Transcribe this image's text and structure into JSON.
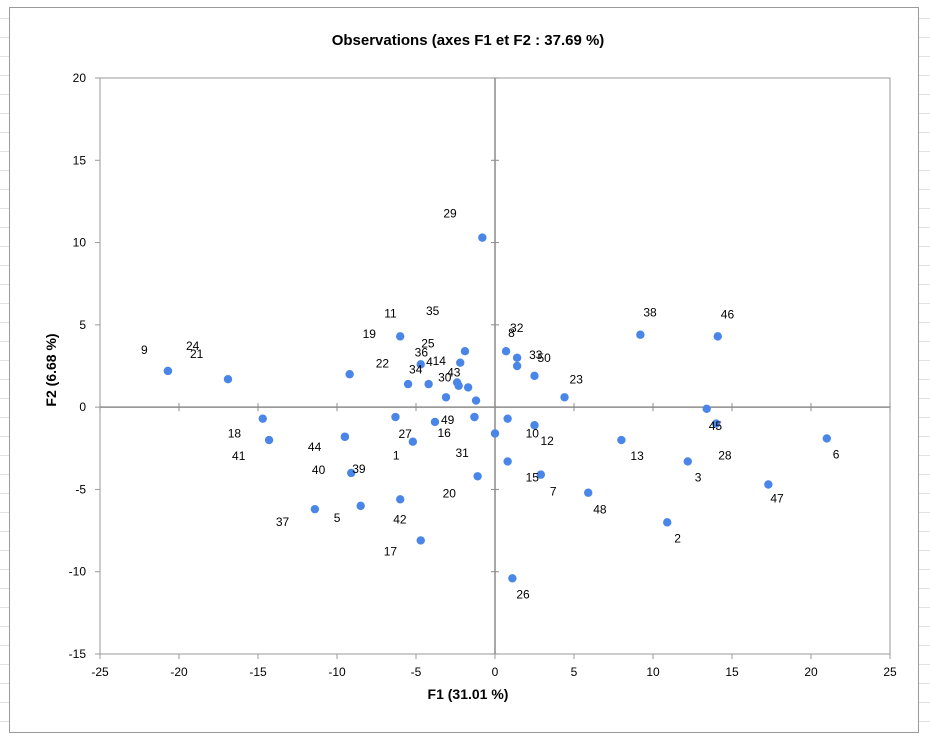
{
  "chart_data": {
    "type": "scatter",
    "title": "Observations (axes F1 et F2 : 37.69 %)",
    "xlabel": "F1 (31.01 %)",
    "ylabel": "F2 (6.68 %)",
    "xlim": [
      -25,
      25
    ],
    "ylim": [
      -15,
      20
    ],
    "xticks": [
      "-25",
      "-20",
      "-15",
      "-10",
      "-5",
      "0",
      "5",
      "10",
      "15",
      "20",
      "25"
    ],
    "yticks": [
      "-15",
      "-10",
      "-5",
      "0",
      "5",
      "10",
      "15",
      "20"
    ],
    "point_color": "#4a86e8",
    "grid": false,
    "legend": "none",
    "points": [
      {
        "label": "1",
        "x": -5.2,
        "y": -2.1
      },
      {
        "label": "2",
        "x": 10.9,
        "y": -7.0
      },
      {
        "label": "3",
        "x": 12.2,
        "y": -3.3
      },
      {
        "label": "4",
        "x": -5.5,
        "y": 1.4
      },
      {
        "label": "5",
        "x": -8.5,
        "y": -6.0
      },
      {
        "label": "6",
        "x": 21.0,
        "y": -1.9
      },
      {
        "label": "7",
        "x": 2.9,
        "y": -4.1
      },
      {
        "label": "8",
        "x": 1.4,
        "y": 3.0
      },
      {
        "label": "9",
        "x": -20.7,
        "y": 2.2
      },
      {
        "label": "10",
        "x": 0.8,
        "y": -0.7
      },
      {
        "label": "11",
        "x": -6.0,
        "y": 4.3
      },
      {
        "label": "12",
        "x": 2.5,
        "y": -1.1
      },
      {
        "label": "13",
        "x": 8.0,
        "y": -2.0
      },
      {
        "label": "14",
        "x": -4.2,
        "y": 1.4
      },
      {
        "label": "15",
        "x": 0.8,
        "y": -3.3
      },
      {
        "label": "16",
        "x": -1.3,
        "y": -0.6
      },
      {
        "label": "17",
        "x": -4.7,
        "y": -8.1
      },
      {
        "label": "18",
        "x": -14.7,
        "y": -0.7
      },
      {
        "label": "19",
        "x": -9.2,
        "y": 2.0
      },
      {
        "label": "20",
        "x": -1.1,
        "y": -4.2
      },
      {
        "label": "21",
        "x": -16.9,
        "y": 1.7
      },
      {
        "label": "22",
        "x": -4.7,
        "y": 2.6
      },
      {
        "label": "23",
        "x": 4.4,
        "y": 0.6
      },
      {
        "label": "24",
        "x": -20.7,
        "y": 2.2
      },
      {
        "label": "25",
        "x": -2.2,
        "y": 2.7
      },
      {
        "label": "26",
        "x": 1.1,
        "y": -10.4
      },
      {
        "label": "27",
        "x": -6.3,
        "y": -0.6
      },
      {
        "label": "28",
        "x": 14.0,
        "y": -1.0
      },
      {
        "label": "29",
        "x": -0.8,
        "y": 10.3
      },
      {
        "label": "30",
        "x": -2.4,
        "y": 1.5
      },
      {
        "label": "31",
        "x": -1.3,
        "y": -0.6
      },
      {
        "label": "32",
        "x": 0.7,
        "y": 3.4
      },
      {
        "label": "33",
        "x": 1.4,
        "y": 2.5
      },
      {
        "label": "34",
        "x": -3.1,
        "y": 0.6
      },
      {
        "label": "35",
        "x": -1.9,
        "y": 3.4
      },
      {
        "label": "36",
        "x": -2.3,
        "y": 1.3
      },
      {
        "label": "37",
        "x": -11.4,
        "y": -6.2
      },
      {
        "label": "38",
        "x": 9.2,
        "y": 4.4
      },
      {
        "label": "39",
        "x": -9.1,
        "y": -4.0
      },
      {
        "label": "40",
        "x": -9.5,
        "y": -1.8
      },
      {
        "label": "41",
        "x": -14.3,
        "y": -2.0
      },
      {
        "label": "42",
        "x": -6.0,
        "y": -5.6
      },
      {
        "label": "43",
        "x": -1.7,
        "y": 1.2
      },
      {
        "label": "44",
        "x": -9.5,
        "y": -1.8
      },
      {
        "label": "45",
        "x": 13.4,
        "y": -0.1
      },
      {
        "label": "46",
        "x": 14.1,
        "y": 4.3
      },
      {
        "label": "47",
        "x": 17.3,
        "y": -4.7
      },
      {
        "label": "48",
        "x": 5.9,
        "y": -5.2
      },
      {
        "label": "49",
        "x": -3.8,
        "y": -0.9
      },
      {
        "label": "50",
        "x": 2.5,
        "y": 1.9
      }
    ],
    "extra_markers": [
      {
        "x": -1.2,
        "y": 0.4
      },
      {
        "x": 0.0,
        "y": -1.6
      }
    ]
  }
}
